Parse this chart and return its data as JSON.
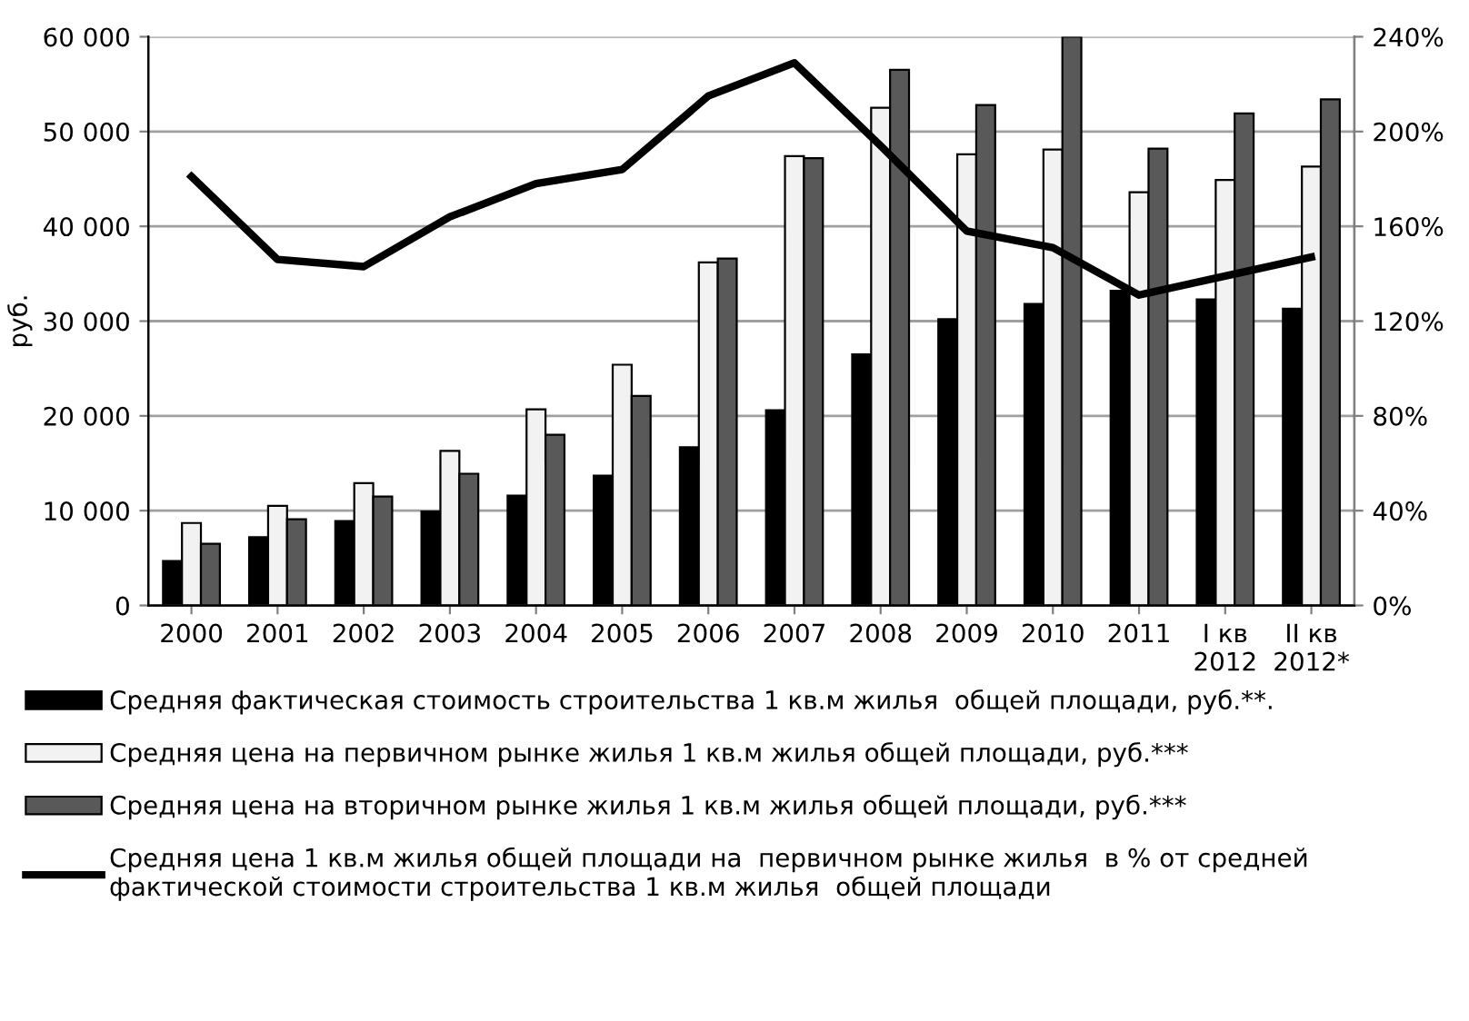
{
  "chart_data": {
    "type": "bar",
    "ylabel": "руб.",
    "categories": [
      "2000",
      "2001",
      "2002",
      "2003",
      "2004",
      "2005",
      "2006",
      "2007",
      "2008",
      "2009",
      "2010",
      "2011",
      "I кв\n2012",
      "II кв\n2012*"
    ],
    "series": [
      {
        "name": "Средняя фактическая стоимость строительства 1 кв.м жилья  общей площади, руб.**.",
        "color": "#000000",
        "values": [
          4700,
          7200,
          8900,
          9900,
          11600,
          13700,
          16700,
          20600,
          26500,
          30200,
          31800,
          33200,
          32300,
          31300
        ]
      },
      {
        "name": "Средняя цена на первичном рынке жилья 1 кв.м жилья общей площади, руб.***",
        "color": "#f2f2f2",
        "values": [
          8700,
          10500,
          12900,
          16300,
          20700,
          25400,
          36200,
          47400,
          52500,
          47600,
          48100,
          43600,
          44900,
          46300
        ]
      },
      {
        "name": "Средняя цена на вторичном рынке жилья 1 кв.м жилья общей площади, руб.***",
        "color": "#595959",
        "values": [
          6500,
          9100,
          11500,
          13900,
          18000,
          22100,
          36600,
          47200,
          56500,
          52800,
          60000,
          48200,
          51900,
          53400
        ]
      },
      {
        "name": "Средняя цена 1 кв.м жилья общей площади на  первичном рынке жилья  в % от средней фактической стоимости строительства 1 кв.м жилья  общей площади",
        "type": "line",
        "axis": "y2",
        "color": "#000000",
        "values": [
          181,
          146,
          143,
          164,
          178,
          184,
          215,
          229,
          194,
          158,
          151,
          131,
          139,
          147
        ]
      }
    ],
    "ylim": [
      0,
      60000
    ],
    "yticks": [
      0,
      {
        "value": 10000,
        "label": "10 000"
      },
      {
        "value": 20000,
        "label": "20 000"
      },
      {
        "value": 30000,
        "label": "30 000"
      },
      {
        "value": 40000,
        "label": "40 000"
      },
      {
        "value": 50000,
        "label": "50 000"
      },
      {
        "value": 60000,
        "label": "60 000"
      }
    ],
    "y2lim": [
      0,
      240
    ],
    "y2ticks": [
      {
        "value": 0,
        "label": "0%"
      },
      {
        "value": 40,
        "label": "40%"
      },
      {
        "value": 80,
        "label": "80%"
      },
      {
        "value": 120,
        "label": "120%"
      },
      {
        "value": 160,
        "label": "160%"
      },
      {
        "value": 200,
        "label": "200%"
      },
      {
        "value": 240,
        "label": "240%"
      }
    ],
    "grid": "y",
    "legend": "bottom"
  }
}
